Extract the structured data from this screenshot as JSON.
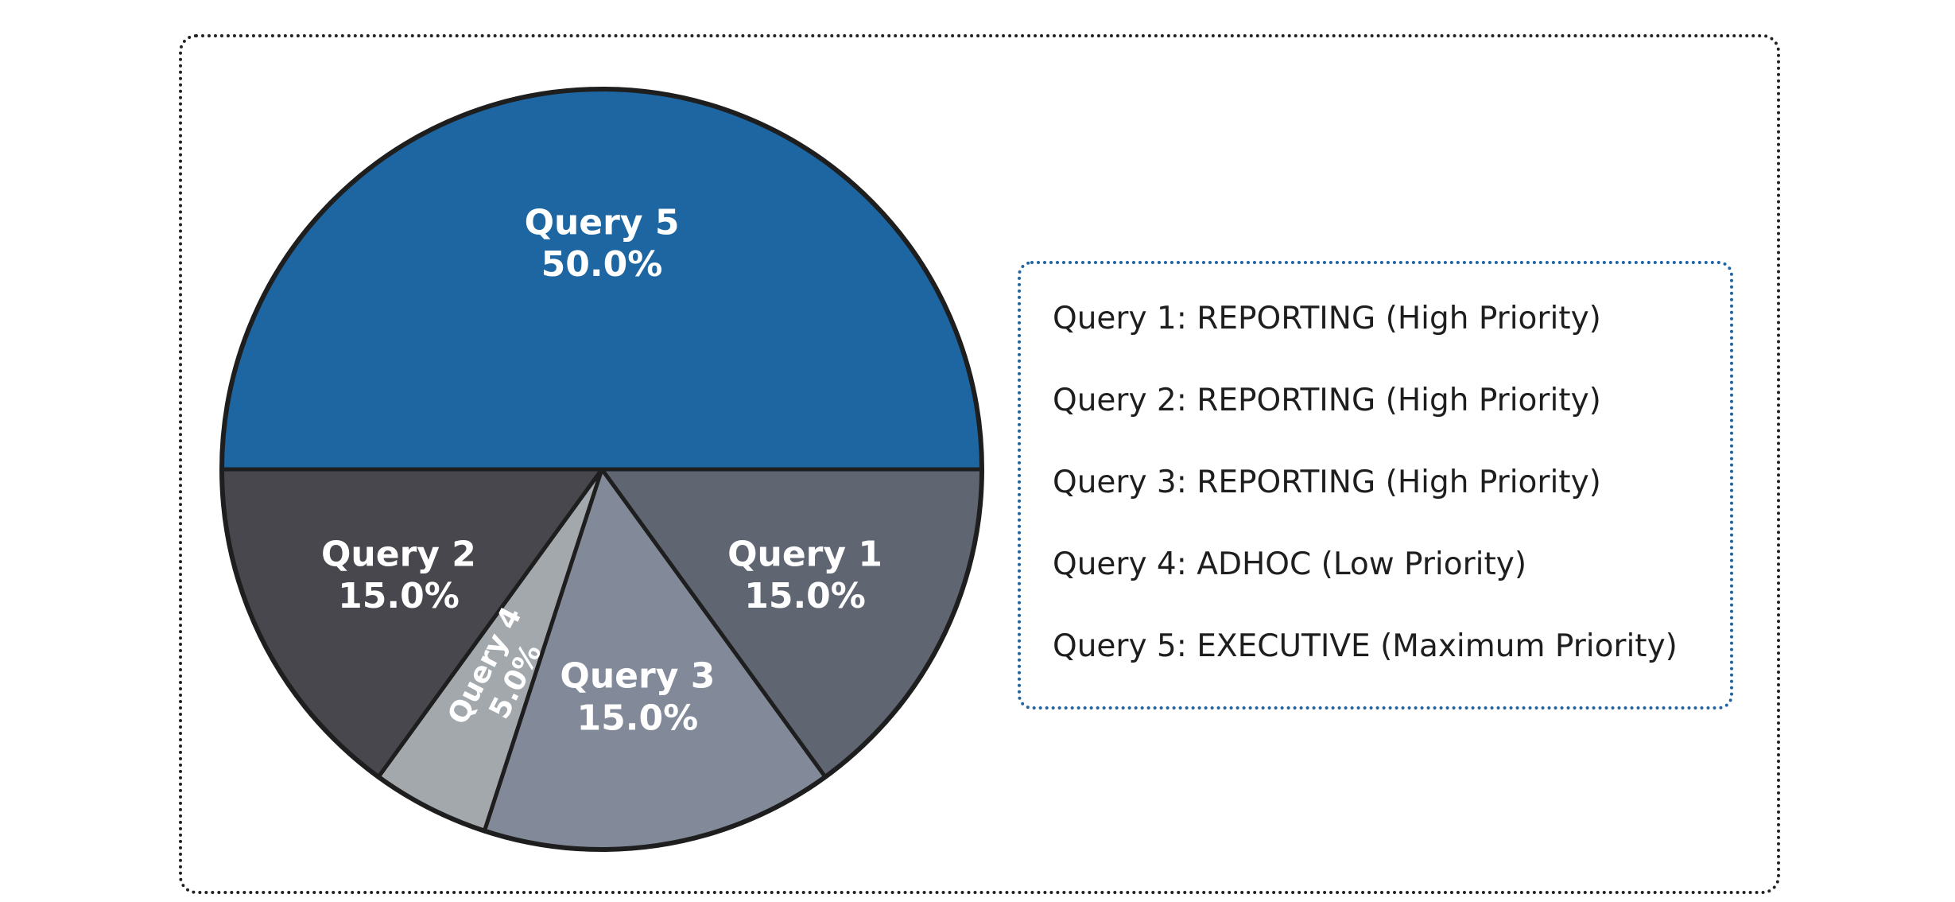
{
  "chart_data": {
    "type": "pie",
    "slices": [
      {
        "label": "Query 1",
        "value": 15.0,
        "pct_text": "15.0%",
        "color": "#5f6672"
      },
      {
        "label": "Query 3",
        "value": 15.0,
        "pct_text": "15.0%",
        "color": "#828a99"
      },
      {
        "label": "Query 4",
        "value": 5.0,
        "pct_text": "5.0%",
        "color": "#a3a8ad"
      },
      {
        "label": "Query 2",
        "value": 15.0,
        "pct_text": "15.0%",
        "color": "#47474d"
      },
      {
        "label": "Query 5",
        "value": 50.0,
        "pct_text": "50.0%",
        "color": "#1d66a1"
      }
    ],
    "legend": [
      "Query 1: REPORTING (High Priority)",
      "Query 2: REPORTING (High Priority)",
      "Query 3: REPORTING (High Priority)",
      "Query 4: ADHOC (Low Priority)",
      "Query 5: EXECUTIVE (Maximum Priority)"
    ],
    "legend_placement": "right"
  }
}
